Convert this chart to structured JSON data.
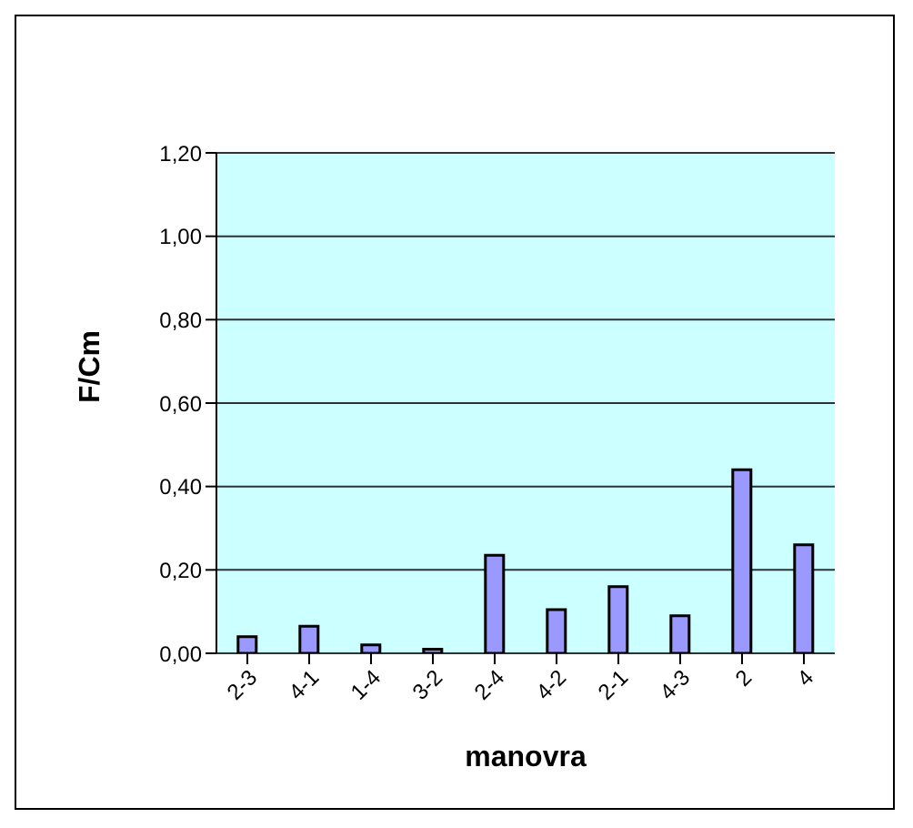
{
  "chart_data": {
    "type": "bar",
    "xlabel": "manovra",
    "ylabel": "F/Cm",
    "categories": [
      "2-3",
      "4-1",
      "1-4",
      "3-2",
      "2-4",
      "4-2",
      "2-1",
      "4-3",
      "2",
      "4"
    ],
    "values": [
      0.04,
      0.065,
      0.02,
      0.01,
      0.235,
      0.105,
      0.16,
      0.09,
      0.44,
      0.26
    ],
    "color": "#9999ff",
    "ylim": [
      0,
      1.2
    ],
    "yticks": [
      {
        "value": 0,
        "label": "0,00"
      },
      {
        "value": 0.2,
        "label": "0,20"
      },
      {
        "value": 0.4,
        "label": "0,40"
      },
      {
        "value": 0.6,
        "label": "0,60"
      },
      {
        "value": 0.8,
        "label": "0,80"
      },
      {
        "value": 1,
        "label": "1,00"
      },
      {
        "value": 1.2,
        "label": "1,20"
      }
    ],
    "grid": "y",
    "legend": false
  }
}
